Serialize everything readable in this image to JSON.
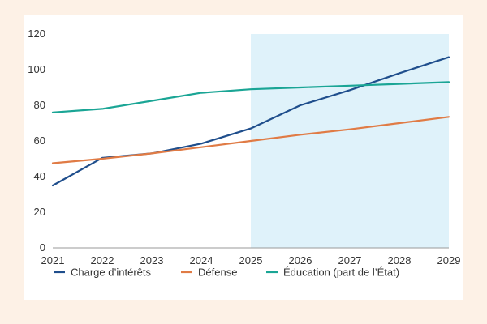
{
  "chart_data": {
    "type": "line",
    "x": [
      2021,
      2022,
      2023,
      2024,
      2025,
      2026,
      2027,
      2028,
      2029
    ],
    "x_ticks": [
      "2021",
      "2022",
      "2023",
      "2024",
      "2025",
      "2026",
      "2027",
      "2028",
      "2029"
    ],
    "y_ticks": [
      "0",
      "20",
      "40",
      "60",
      "80",
      "100",
      "120"
    ],
    "ylim": [
      0,
      120
    ],
    "xlim": [
      2021,
      2029
    ],
    "shaded_region": {
      "from": 2025,
      "to": 2029,
      "color": "#dff2fa"
    },
    "grid": false,
    "legend_position": "bottom",
    "series": [
      {
        "name": "Charge d’intérêts",
        "color": "#1f4e8c",
        "values": [
          35,
          50.5,
          53,
          58.5,
          67,
          80,
          88.5,
          98,
          107
        ]
      },
      {
        "name": "Défense",
        "color": "#e07b45",
        "values": [
          47.5,
          50,
          53,
          56.5,
          60,
          63.5,
          66.5,
          70,
          73.5
        ]
      },
      {
        "name": "Éducation (part de l’État)",
        "color": "#1aa595",
        "values": [
          76,
          78,
          82.5,
          87,
          89,
          90,
          91,
          92,
          93
        ]
      }
    ]
  }
}
